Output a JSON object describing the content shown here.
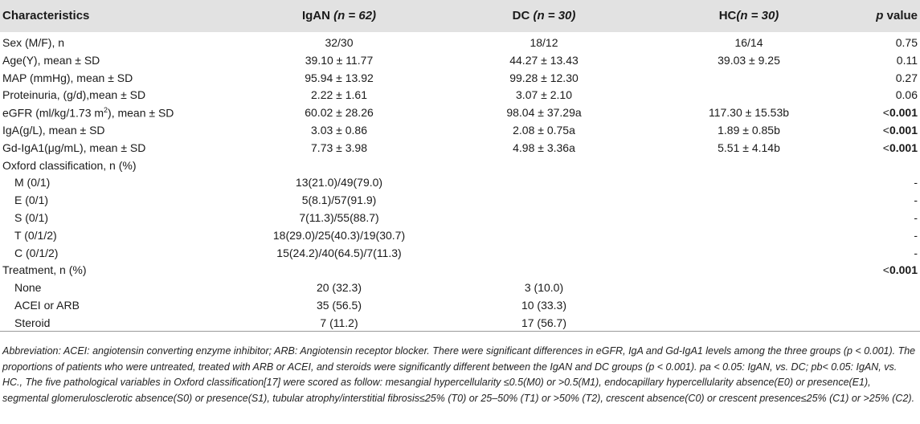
{
  "header": {
    "characteristics": "Characteristics",
    "igan_name": "IgAN",
    "igan_n": "(n = 62)",
    "dc_name": "DC",
    "dc_n": "(n = 30)",
    "hc_name": "HC",
    "hc_n": "(n = 30)",
    "p_italic": "p",
    "p_rest": " value"
  },
  "rows": [
    {
      "label": "Sex (M/F), n",
      "igan": "32/30",
      "dc": "18/12",
      "hc": "16/14",
      "p": "0.75"
    },
    {
      "label": "Age(Y), mean ± SD",
      "igan": "39.10 ± 11.77",
      "dc": "44.27 ± 13.43",
      "hc": "39.03 ± 9.25",
      "p": "0.11"
    },
    {
      "label": "MAP (mmHg), mean ± SD",
      "igan": "95.94 ± 13.92",
      "dc": "99.28 ± 12.30",
      "hc": "",
      "p": "0.27"
    },
    {
      "label": "Proteinuria, (g/d),mean ± SD",
      "igan": "2.22 ± 1.61",
      "dc": "3.07 ± 2.10",
      "hc": "",
      "p": "0.06"
    },
    {
      "label_pre": "eGFR (ml/kg/1.73 m",
      "label_sup": "2",
      "label_post": "), mean ± SD",
      "igan": "60.02 ± 28.26",
      "dc": "98.04 ± 37.29a",
      "hc": "117.30 ± 15.53b",
      "p_lt": "<",
      "p_bold": "0.001"
    },
    {
      "label": "IgA(g/L), mean ± SD",
      "igan": "3.03 ± 0.86",
      "dc": "2.08 ± 0.75a",
      "hc": "1.89 ± 0.85b",
      "p_lt": "<",
      "p_bold": "0.001"
    },
    {
      "label": "Gd-IgA1(μg/mL), mean ± SD",
      "igan": "7.73 ± 3.98",
      "dc": "4.98 ± 3.36a",
      "hc": "5.51 ± 4.14b",
      "p_lt": "<",
      "p_bold": "0.001"
    },
    {
      "label": "Oxford classification, n (%)"
    },
    {
      "label": "M (0/1)",
      "igan": "13(21.0)/49(79.0)",
      "p": "-"
    },
    {
      "label": "E (0/1)",
      "igan": "5(8.1)/57(91.9)",
      "p": "-"
    },
    {
      "label": "S (0/1)",
      "igan": "7(11.3)/55(88.7)",
      "p": "-"
    },
    {
      "label": "T (0/1/2)",
      "igan": "18(29.0)/25(40.3)/19(30.7)",
      "p": "-"
    },
    {
      "label": "C (0/1/2)",
      "igan": "15(24.2)/40(64.5)/7(11.3)",
      "p": "-"
    },
    {
      "label": "Treatment, n (%)",
      "p_lt": "<",
      "p_bold": "0.001"
    },
    {
      "label": "None",
      "igan": "20 (32.3)",
      "dc": "3 (10.0)"
    },
    {
      "label": "ACEI or ARB",
      "igan": "35 (56.5)",
      "dc": "10 (33.3)"
    },
    {
      "label": "Steroid",
      "igan": "7 (11.2)",
      "dc": "17 (56.7)"
    }
  ],
  "footnote": "Abbreviation: ACEI: angiotensin converting enzyme inhibitor; ARB: Angiotensin receptor blocker. There were significant differences in eGFR, IgA and Gd-IgA1 levels among the three groups (p < 0.001). The proportions of patients who were untreated, treated with ARB or ACEI, and steroids were significantly different between the IgAN and DC groups (p < 0.001). pa < 0.05: IgAN, vs. DC; pb< 0.05: IgAN, vs. HC., The five pathological variables in Oxford classification[17] were scored as follow: mesangial hypercellularity ≤0.5(M0) or >0.5(M1), endocapillary hypercellularity absence(E0) or presence(E1), segmental glomerulosclerotic absence(S0) or presence(S1), tubular atrophy/interstitial fibrosis≤25% (T0) or 25–50% (T1) or >50% (T2), crescent absence(C0) or crescent presence≤25% (C1) or >25% (C2)."
}
